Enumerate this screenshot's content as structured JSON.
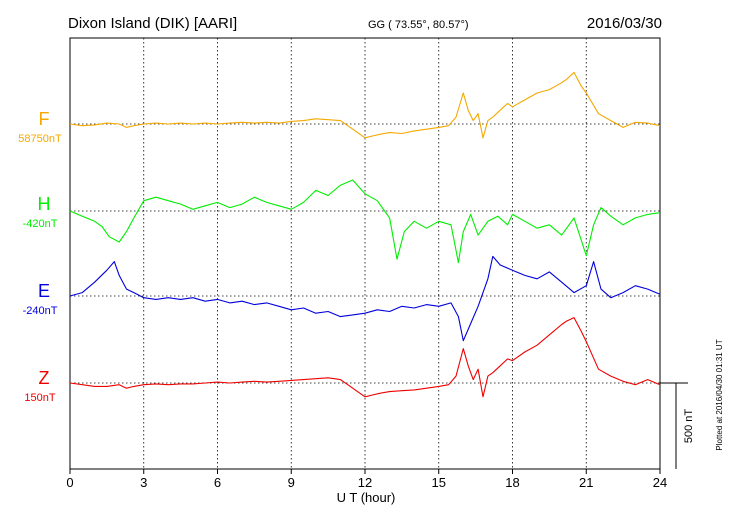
{
  "header": {
    "station": "Dixon Island (DIK)  [AARI]",
    "coords": "GG ( 73.55°,  80.57°)",
    "date": "2016/03/30"
  },
  "plotted_note": "Plotted at 2016/04/30 01:31  UT",
  "scale_label": "500 nT",
  "chart_data": {
    "type": "line",
    "title": "Dixon Island (DIK)  [AARI]",
    "xlabel": "U T (hour)",
    "xlim": [
      0,
      24
    ],
    "xticks": [
      0,
      3,
      6,
      9,
      12,
      15,
      18,
      21,
      24
    ],
    "grid": true,
    "scale_bar_nT": 500,
    "series": [
      {
        "name": "F",
        "baseline_label": "58750nT",
        "color": "#f5a800",
        "x": [
          0,
          0.5,
          1,
          1.5,
          2,
          2.3,
          2.6,
          3,
          3.5,
          4,
          4.5,
          5,
          5.5,
          6,
          6.5,
          7,
          7.5,
          8,
          8.5,
          9,
          9.5,
          10,
          10.5,
          11,
          11.3,
          11.6,
          12,
          12.3,
          12.6,
          13,
          13.5,
          14,
          14.5,
          15,
          15.4,
          15.7,
          16,
          16.2,
          16.4,
          16.6,
          16.8,
          17,
          17.2,
          17.5,
          17.8,
          18,
          18.5,
          19,
          19.5,
          20,
          20.2,
          20.5,
          20.8,
          21,
          21.5,
          22,
          22.5,
          23,
          23.5,
          24
        ],
        "values": [
          0,
          -10,
          -5,
          5,
          0,
          -20,
          -10,
          0,
          5,
          0,
          5,
          0,
          5,
          0,
          5,
          10,
          5,
          10,
          5,
          15,
          20,
          30,
          25,
          20,
          -10,
          -40,
          -80,
          -70,
          -60,
          -50,
          -55,
          -40,
          -30,
          -20,
          -10,
          40,
          180,
          80,
          20,
          60,
          -80,
          20,
          40,
          80,
          120,
          100,
          140,
          180,
          200,
          240,
          260,
          300,
          220,
          180,
          60,
          20,
          -20,
          10,
          5,
          -10
        ]
      },
      {
        "name": "H",
        "baseline_label": "-420nT",
        "color": "#00ee00",
        "x": [
          0,
          0.5,
          1,
          1.3,
          1.6,
          2,
          2.3,
          2.6,
          3,
          3.5,
          4,
          4.5,
          5,
          5.5,
          6,
          6.5,
          7,
          7.5,
          8,
          8.5,
          9,
          9.5,
          10,
          10.5,
          11,
          11.5,
          12,
          12.5,
          13,
          13.3,
          13.6,
          14,
          14.5,
          15,
          15.5,
          15.8,
          16,
          16.3,
          16.6,
          17,
          17.4,
          17.8,
          18,
          18.5,
          19,
          19.5,
          20,
          20.5,
          21,
          21.3,
          21.6,
          22,
          22.5,
          23,
          23.5,
          24
        ],
        "values": [
          0,
          -30,
          -60,
          -90,
          -150,
          -180,
          -120,
          -40,
          60,
          80,
          60,
          40,
          10,
          30,
          50,
          20,
          40,
          80,
          50,
          30,
          10,
          50,
          120,
          90,
          150,
          180,
          100,
          60,
          -40,
          -280,
          -120,
          -60,
          -100,
          -60,
          -80,
          -300,
          -120,
          -20,
          -140,
          -60,
          -30,
          -80,
          -20,
          -60,
          -100,
          -80,
          -140,
          -40,
          -260,
          -80,
          20,
          -30,
          -80,
          -40,
          -20,
          -10
        ]
      },
      {
        "name": "E",
        "baseline_label": "-240nT",
        "color": "#0000dd",
        "x": [
          0,
          0.5,
          1,
          1.5,
          1.8,
          2,
          2.3,
          2.6,
          3,
          3.5,
          4,
          4.5,
          5,
          5.5,
          6,
          6.5,
          7,
          7.5,
          8,
          8.5,
          9,
          9.5,
          10,
          10.5,
          11,
          11.5,
          12,
          12.5,
          13,
          13.5,
          14,
          14.5,
          15,
          15.5,
          15.8,
          16,
          16.3,
          16.6,
          17,
          17.2,
          17.5,
          18,
          18.5,
          19,
          19.5,
          20,
          20.5,
          21,
          21.3,
          21.6,
          22,
          22.5,
          23,
          23.5,
          24
        ],
        "values": [
          0,
          20,
          80,
          150,
          200,
          120,
          40,
          20,
          -10,
          -20,
          -10,
          -20,
          -10,
          -30,
          -20,
          -40,
          -30,
          -50,
          -40,
          -60,
          -80,
          -70,
          -100,
          -90,
          -120,
          -110,
          -100,
          -80,
          -90,
          -60,
          -70,
          -50,
          -60,
          -40,
          -120,
          -260,
          -160,
          -60,
          100,
          230,
          180,
          150,
          120,
          100,
          140,
          80,
          20,
          60,
          200,
          40,
          -10,
          20,
          60,
          40,
          10
        ]
      },
      {
        "name": "Z",
        "baseline_label": "150nT",
        "color": "#ee0000",
        "x": [
          0,
          0.5,
          1,
          1.5,
          2,
          2.3,
          2.6,
          3,
          3.5,
          4,
          4.5,
          5,
          5.5,
          6,
          6.5,
          7,
          7.5,
          8,
          8.5,
          9,
          9.5,
          10,
          10.5,
          11,
          11.3,
          11.6,
          12,
          12.3,
          12.6,
          13,
          13.5,
          14,
          14.5,
          15,
          15.4,
          15.7,
          16,
          16.2,
          16.4,
          16.6,
          16.8,
          17,
          17.2,
          17.5,
          17.8,
          18,
          18.5,
          19,
          19.5,
          20,
          20.2,
          20.5,
          20.8,
          21,
          21.5,
          22,
          22.5,
          23,
          23.5,
          24
        ],
        "values": [
          0,
          -10,
          -20,
          -20,
          -10,
          -30,
          -20,
          -10,
          -5,
          -10,
          -5,
          -5,
          0,
          5,
          0,
          5,
          10,
          5,
          10,
          15,
          20,
          25,
          30,
          20,
          -10,
          -40,
          -80,
          -70,
          -60,
          -50,
          -45,
          -40,
          -30,
          -20,
          -10,
          40,
          200,
          100,
          20,
          80,
          -80,
          40,
          60,
          100,
          140,
          130,
          180,
          220,
          280,
          340,
          360,
          380,
          300,
          240,
          80,
          40,
          10,
          -10,
          20,
          -10
        ]
      }
    ]
  }
}
